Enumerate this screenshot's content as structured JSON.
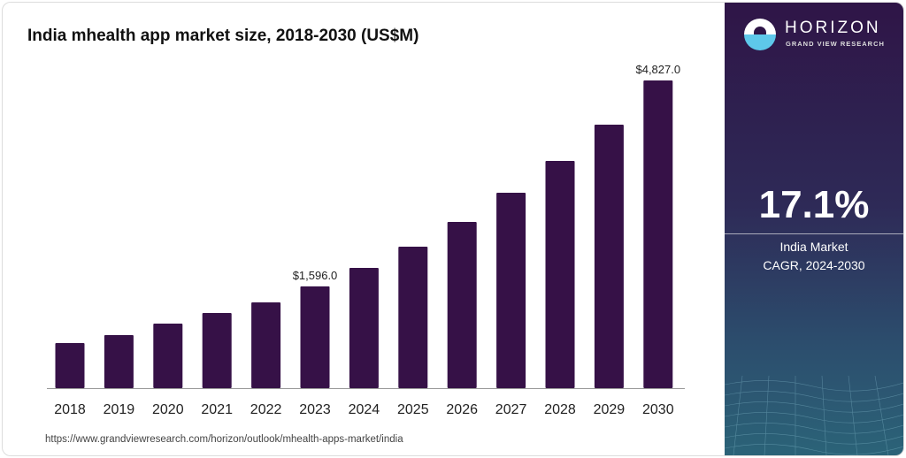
{
  "chart_data": {
    "type": "bar",
    "title": "India mhealth app market size, 2018-2030 (US$M)",
    "categories": [
      "2018",
      "2019",
      "2020",
      "2021",
      "2022",
      "2023",
      "2024",
      "2025",
      "2026",
      "2027",
      "2028",
      "2029",
      "2030"
    ],
    "values": [
      707,
      832,
      1012,
      1179,
      1345,
      1596,
      1886,
      2219,
      2608,
      3065,
      3565,
      4133,
      4827
    ],
    "data_labels": {
      "2023": "$1,596.0",
      "2030": "$4,827.0"
    },
    "xlabel": "",
    "ylabel": "",
    "ylim": [
      0,
      4827
    ],
    "grid": false,
    "bar_color": "#361147"
  },
  "source": "https://www.grandviewresearch.com/horizon/outlook/mhealth-apps-market/india",
  "panel": {
    "logo_brand": "HORIZON",
    "logo_sub": "GRAND VIEW RESEARCH",
    "cagr": "17.1%",
    "label_line1": "India Market",
    "label_line2": "CAGR, 2024-2030"
  }
}
